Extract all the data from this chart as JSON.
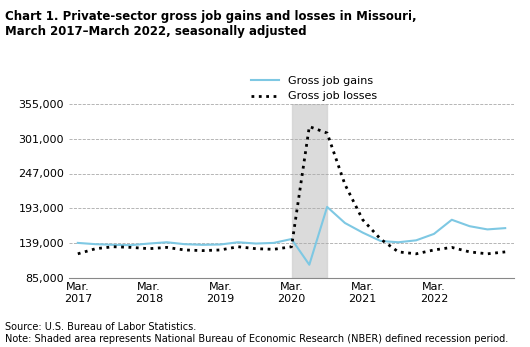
{
  "title": "Chart 1. Private-sector gross job gains and losses in Missouri,\nMarch 2017–March 2022, seasonally adjusted",
  "source_note": "Source: U.S. Bureau of Labor Statistics.\nNote: Shaded area represents National Bureau of Economic Research (NBER) defined recession period.",
  "legend": [
    "Gross job gains",
    "Gross job losses"
  ],
  "gains_color": "#7EC8E3",
  "losses_color": "#000000",
  "background_color": "#ffffff",
  "recession_color": "#d3d3d3",
  "recession_start": 12,
  "recession_end": 14,
  "ylim": [
    85000,
    355000
  ],
  "yticks": [
    85000,
    139000,
    193000,
    247000,
    301000,
    355000
  ],
  "ytick_labels": [
    "85,000",
    "139,000",
    "193,000",
    "247,000",
    "301,000",
    "355,000"
  ],
  "xtick_positions": [
    0,
    4,
    8,
    12,
    16,
    20
  ],
  "xtick_labels": [
    "Mar.\n2017",
    "Mar.\n2018",
    "Mar.\n2019",
    "Mar.\n2020",
    "Mar.\n2021",
    "Mar.\n2022"
  ],
  "gross_job_gains": [
    139000,
    137000,
    136000,
    135500,
    138000,
    140000,
    137000,
    136000,
    136500,
    140000,
    138000,
    139000,
    145000,
    105000,
    195000,
    170000,
    155000,
    142000,
    140000,
    143000,
    153000,
    175000,
    165000,
    160000,
    162000
  ],
  "gross_job_losses": [
    122000,
    130000,
    133000,
    132000,
    130000,
    132000,
    128000,
    127000,
    128000,
    133000,
    130000,
    129000,
    133000,
    320000,
    310000,
    230000,
    175000,
    145000,
    125000,
    122000,
    128000,
    132000,
    125000,
    122000,
    125000
  ]
}
